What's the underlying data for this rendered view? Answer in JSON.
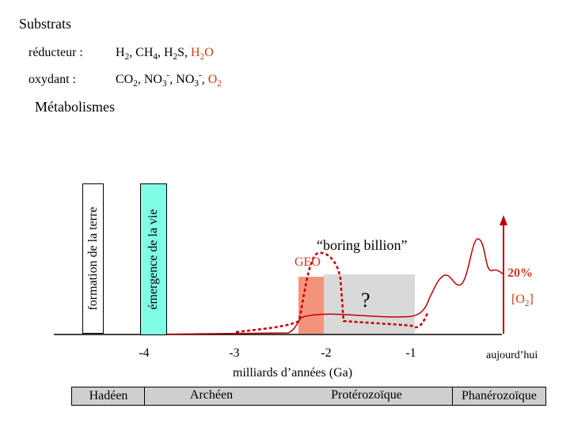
{
  "header": {
    "title": "Substrats",
    "reducteur_label": "réducteur :",
    "reducteur_black": [
      "H",
      "2",
      ", CH",
      "4",
      ", H",
      "2",
      "S, "
    ],
    "reducteur_red": [
      "H",
      "2",
      "O"
    ],
    "oxydant_label": "oxydant :",
    "oxydant_black": [
      "CO",
      "2",
      ", NO",
      "3",
      "-",
      ", NO",
      "3",
      "-",
      ", "
    ],
    "oxydant_red": [
      "O",
      "2"
    ]
  },
  "section_title": "Métabolismes",
  "timeline": {
    "formation_label": "formation de la terre",
    "emergence_label": "émergence de la vie",
    "boring_billion_label": "“boring billion”",
    "geo_label": "GEO",
    "question_mark": "?",
    "percent_label": "20%",
    "o2_label_parts": [
      "[O",
      "2",
      "]"
    ],
    "today_label": "aujourd’hui",
    "x_axis_title": "milliards d’années (Ga)",
    "ticks": [
      "-4",
      "-3",
      "-2",
      "-1"
    ],
    "eons": [
      "Hadéen",
      "Archéen",
      "Protérozoïque",
      "Phanérozoïque"
    ]
  },
  "colors": {
    "accent_red": "#d0391f",
    "emergence_cyan": "#80ffe6",
    "geo_salmon": "#f4937c",
    "boring_gray": "#d9d9d9",
    "eon_gray": "#cfcfcf"
  }
}
